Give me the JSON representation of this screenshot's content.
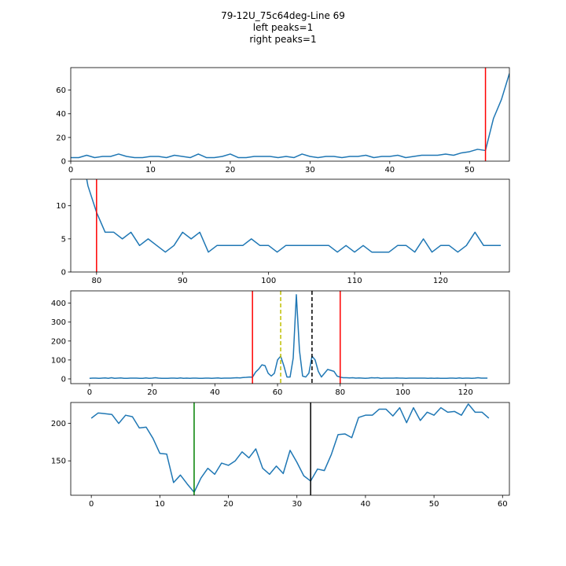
{
  "title_lines": [
    "79-12U_75c64deg-Line 69",
    "left peaks=1",
    "right peaks=1"
  ],
  "chart_data": [
    {
      "type": "line",
      "xlim": [
        0,
        55
      ],
      "ylim": [
        0,
        79
      ],
      "xticks": [
        0,
        10,
        20,
        30,
        40,
        50
      ],
      "yticks": [
        0,
        20,
        40,
        60
      ],
      "series": [
        {
          "color": "#1f77b4",
          "x": [
            0,
            1,
            2,
            3,
            4,
            5,
            6,
            7,
            8,
            9,
            10,
            11,
            12,
            13,
            14,
            15,
            16,
            17,
            18,
            19,
            20,
            21,
            22,
            23,
            24,
            25,
            26,
            27,
            28,
            29,
            30,
            31,
            32,
            33,
            34,
            35,
            36,
            37,
            38,
            39,
            40,
            41,
            42,
            43,
            44,
            45,
            46,
            47,
            48,
            49,
            50,
            51,
            52,
            53,
            54,
            55
          ],
          "y": [
            3,
            3,
            5,
            3,
            4,
            4,
            6,
            4,
            3,
            3,
            4,
            4,
            3,
            5,
            4,
            3,
            6,
            3,
            3,
            4,
            6,
            3,
            3,
            4,
            4,
            4,
            3,
            4,
            3,
            6,
            4,
            3,
            4,
            4,
            3,
            4,
            4,
            5,
            3,
            4,
            4,
            5,
            3,
            4,
            5,
            5,
            5,
            6,
            5,
            7,
            8,
            10,
            9,
            36,
            52,
            74
          ]
        }
      ],
      "vlines": [
        {
          "x": 52,
          "color": "#ff0000",
          "style": "solid"
        }
      ]
    },
    {
      "type": "line",
      "xlim": [
        77,
        128
      ],
      "ylim": [
        0,
        14
      ],
      "xticks": [
        80,
        90,
        100,
        110,
        120
      ],
      "yticks": [
        0,
        5,
        10
      ],
      "series": [
        {
          "color": "#1f77b4",
          "x": [
            78,
            79,
            80,
            81,
            82,
            83,
            84,
            85,
            86,
            87,
            88,
            89,
            90,
            91,
            92,
            93,
            94,
            95,
            96,
            97,
            98,
            99,
            100,
            101,
            102,
            103,
            104,
            105,
            106,
            107,
            108,
            109,
            110,
            111,
            112,
            113,
            114,
            115,
            116,
            117,
            118,
            119,
            120,
            121,
            122,
            123,
            124,
            125,
            126,
            127
          ],
          "y": [
            20,
            13,
            9,
            6,
            6,
            5,
            6,
            4,
            5,
            4,
            3,
            4,
            6,
            5,
            6,
            3,
            4,
            4,
            4,
            4,
            5,
            4,
            4,
            3,
            4,
            4,
            4,
            4,
            4,
            4,
            3,
            4,
            3,
            4,
            3,
            3,
            3,
            4,
            4,
            3,
            5,
            3,
            4,
            4,
            3,
            4,
            6,
            4,
            4,
            4
          ]
        }
      ],
      "vlines": [
        {
          "x": 80,
          "color": "#ff0000",
          "style": "solid"
        }
      ]
    },
    {
      "type": "line",
      "xlim": [
        -6,
        134
      ],
      "ylim": [
        -25,
        465
      ],
      "xticks": [
        0,
        20,
        40,
        60,
        80,
        100,
        120
      ],
      "yticks": [
        0,
        100,
        200,
        300,
        400
      ],
      "series": [
        {
          "color": "#1f77b4",
          "x": [
            0,
            1,
            2,
            3,
            4,
            5,
            6,
            7,
            8,
            9,
            10,
            11,
            12,
            13,
            14,
            15,
            16,
            17,
            18,
            19,
            20,
            21,
            22,
            23,
            24,
            25,
            26,
            27,
            28,
            29,
            30,
            31,
            32,
            33,
            34,
            35,
            36,
            37,
            38,
            39,
            40,
            41,
            42,
            43,
            44,
            45,
            46,
            47,
            48,
            49,
            50,
            51,
            52,
            53,
            54,
            55,
            56,
            57,
            58,
            59,
            60,
            61,
            62,
            63,
            64,
            65,
            66,
            67,
            68,
            69,
            70,
            71,
            72,
            73,
            74,
            75,
            76,
            77,
            78,
            79,
            80,
            81,
            82,
            83,
            84,
            85,
            86,
            87,
            88,
            89,
            90,
            91,
            92,
            93,
            94,
            95,
            96,
            97,
            98,
            99,
            100,
            101,
            102,
            103,
            104,
            105,
            106,
            107,
            108,
            109,
            110,
            111,
            112,
            113,
            114,
            115,
            116,
            117,
            118,
            119,
            120,
            121,
            122,
            123,
            124,
            125,
            126,
            127
          ],
          "y": [
            3,
            4,
            4,
            3,
            4,
            5,
            3,
            6,
            3,
            4,
            5,
            3,
            3,
            4,
            4,
            4,
            3,
            3,
            5,
            3,
            4,
            6,
            4,
            3,
            3,
            3,
            4,
            4,
            3,
            5,
            3,
            4,
            3,
            4,
            4,
            3,
            3,
            4,
            4,
            3,
            4,
            5,
            3,
            4,
            4,
            4,
            5,
            6,
            5,
            7,
            8,
            10,
            9,
            36,
            52,
            74,
            70,
            30,
            15,
            30,
            100,
            120,
            70,
            10,
            10,
            110,
            445,
            150,
            15,
            10,
            30,
            120,
            100,
            40,
            10,
            30,
            50,
            45,
            40,
            15,
            9,
            6,
            6,
            5,
            6,
            4,
            5,
            4,
            3,
            4,
            6,
            5,
            6,
            3,
            4,
            4,
            4,
            4,
            5,
            4,
            4,
            3,
            4,
            4,
            4,
            4,
            4,
            4,
            3,
            4,
            3,
            4,
            3,
            3,
            3,
            4,
            4,
            3,
            5,
            3,
            4,
            4,
            3,
            4,
            6,
            4,
            4,
            4
          ]
        }
      ],
      "vlines": [
        {
          "x": 52,
          "color": "#ff0000",
          "style": "solid"
        },
        {
          "x": 61,
          "color": "#bfbf00",
          "style": "dashed"
        },
        {
          "x": 71,
          "color": "#000000",
          "style": "dashed"
        },
        {
          "x": 80,
          "color": "#ff0000",
          "style": "solid"
        }
      ]
    },
    {
      "type": "line",
      "xlim": [
        -3,
        61
      ],
      "ylim": [
        104,
        228
      ],
      "xticks": [
        0,
        10,
        20,
        30,
        40,
        50,
        60
      ],
      "yticks": [
        150,
        200
      ],
      "series": [
        {
          "color": "#1f77b4",
          "x": [
            0,
            1,
            2,
            3,
            4,
            5,
            6,
            7,
            8,
            9,
            10,
            11,
            12,
            13,
            14,
            15,
            16,
            17,
            18,
            19,
            20,
            21,
            22,
            23,
            24,
            25,
            26,
            27,
            28,
            29,
            30,
            31,
            32,
            33,
            34,
            35,
            36,
            37,
            38,
            39,
            40,
            41,
            42,
            43,
            44,
            45,
            46,
            47,
            48,
            49,
            50,
            51,
            52,
            53,
            54,
            55,
            56,
            57,
            58
          ],
          "y": [
            207,
            214,
            213,
            212,
            200,
            211,
            209,
            194,
            195,
            180,
            160,
            159,
            121,
            131,
            119,
            108,
            127,
            140,
            132,
            147,
            144,
            150,
            162,
            154,
            166,
            140,
            132,
            143,
            133,
            164,
            148,
            130,
            123,
            139,
            137,
            158,
            185,
            186,
            181,
            208,
            211,
            211,
            219,
            219,
            210,
            221,
            201,
            221,
            204,
            215,
            211,
            221,
            215,
            216,
            211,
            226,
            215,
            215,
            207
          ]
        }
      ],
      "vlines": [
        {
          "x": 15,
          "color": "#008000",
          "style": "solid"
        },
        {
          "x": 32,
          "color": "#000000",
          "style": "solid"
        }
      ]
    }
  ]
}
